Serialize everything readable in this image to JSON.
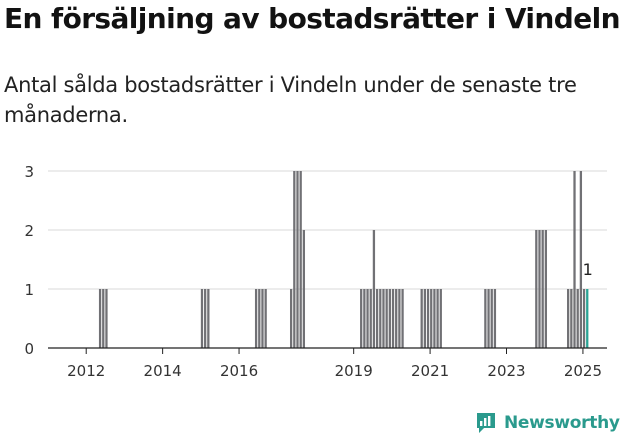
{
  "title": "En försäljning av bostadsrätter i Vindeln",
  "subtitle": "Antal sålda bostadsrätter i Vindeln under de senaste tre månaderna.",
  "brand": "Newsworthy",
  "colors": {
    "bar": "#717175",
    "highlight": "#2aa394",
    "grid": "#d9d9d9",
    "axis": "#222222",
    "brand": "#2a9a8d"
  },
  "chart_data": {
    "type": "bar",
    "title": "En försäljning av bostadsrätter i Vindeln",
    "subtitle": "Antal sålda bostadsrätter i Vindeln under de senaste tre månaderna.",
    "xlabel": "",
    "ylabel": "",
    "ylim": [
      0,
      3
    ],
    "y_ticks": [
      "0",
      "1",
      "2",
      "3"
    ],
    "x_ticks": [
      "2012",
      "2014",
      "2016",
      "2019",
      "2021",
      "2023",
      "2025"
    ],
    "grid": true,
    "annotation": {
      "label": "1",
      "period": "2025-02"
    },
    "series": [
      {
        "x": [
          "2012-05",
          "2012-06",
          "2012-07",
          "2015-01",
          "2015-02",
          "2015-03",
          "2016-06",
          "2016-07",
          "2016-08",
          "2016-09",
          "2017-05",
          "2017-06",
          "2017-07",
          "2017-08",
          "2017-09",
          "2019-03",
          "2019-04",
          "2019-05",
          "2019-06",
          "2019-07",
          "2019-08",
          "2019-09",
          "2019-10",
          "2019-11",
          "2019-12",
          "2020-01",
          "2020-02",
          "2020-03",
          "2020-04",
          "2020-10",
          "2020-11",
          "2020-12",
          "2021-01",
          "2021-02",
          "2021-03",
          "2021-04",
          "2022-06",
          "2022-07",
          "2022-08",
          "2022-09",
          "2023-10",
          "2023-11",
          "2023-12",
          "2024-01",
          "2024-08",
          "2024-09",
          "2024-10",
          "2024-11",
          "2024-12",
          "2025-01",
          "2025-02"
        ],
        "values": [
          1,
          1,
          1,
          1,
          1,
          1,
          1,
          1,
          1,
          1,
          1,
          3,
          3,
          3,
          2,
          1,
          1,
          1,
          1,
          2,
          1,
          1,
          1,
          1,
          1,
          1,
          1,
          1,
          1,
          1,
          1,
          1,
          1,
          1,
          1,
          1,
          1,
          1,
          1,
          1,
          2,
          2,
          2,
          2,
          1,
          1,
          3,
          1,
          3,
          1,
          1
        ]
      }
    ]
  }
}
